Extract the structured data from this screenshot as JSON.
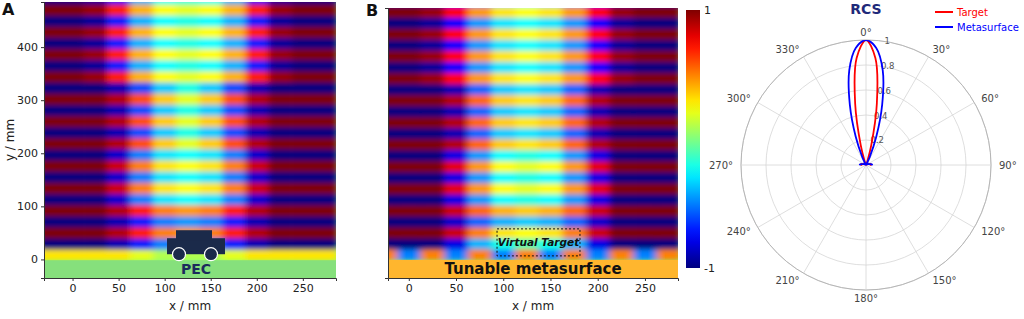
{
  "chart_data": [
    {
      "type": "heatmap",
      "title": "A",
      "xlabel": "x / mm",
      "ylabel": "y / mm",
      "xlim": [
        -31,
        286
      ],
      "ylim": [
        -35,
        485
      ],
      "xticks": [
        0,
        50,
        100,
        150,
        200,
        250
      ],
      "yticks": [
        0,
        100,
        200,
        300,
        400
      ],
      "color_range": [
        -1,
        1
      ],
      "annotations": [
        "PEC"
      ],
      "x": [
        -25,
        0,
        25,
        50,
        75,
        100,
        125,
        150,
        175,
        200,
        225,
        250,
        275
      ],
      "y": [
        9,
        30,
        51,
        72,
        93,
        114,
        135,
        156,
        177,
        198,
        219,
        240,
        261,
        282,
        303,
        324,
        345,
        366,
        387,
        408,
        429,
        450,
        471,
        492
      ],
      "values": [
        [
          0.3,
          0.3,
          0.3,
          0.3,
          0.2,
          0.1,
          0.1,
          0.1,
          0.2,
          0.3,
          0.3,
          0.3,
          0.3
        ],
        [
          -1,
          -1,
          -1,
          -0.9,
          -0.7,
          -0.5,
          -0.45,
          -0.5,
          -0.7,
          -0.9,
          -1,
          -1,
          -1
        ],
        [
          1,
          1,
          1,
          0.9,
          0.7,
          0.5,
          0.45,
          0.5,
          0.7,
          0.9,
          1,
          1,
          1
        ],
        [
          -1,
          -1,
          -1,
          -0.9,
          -0.7,
          -0.5,
          -0.45,
          -0.5,
          -0.7,
          -0.9,
          -1,
          -1,
          -1
        ],
        [
          1,
          1,
          1,
          0.9,
          0.7,
          0.5,
          0.45,
          0.5,
          0.7,
          0.9,
          1,
          1,
          1
        ],
        [
          -1,
          -1,
          -1,
          -0.85,
          -0.5,
          -0.3,
          -0.25,
          -0.3,
          -0.5,
          -0.85,
          -1,
          -1,
          -1
        ],
        [
          1,
          1,
          1,
          0.85,
          0.5,
          0.3,
          0.25,
          0.3,
          0.5,
          0.85,
          1,
          1,
          1
        ],
        [
          -1,
          -1,
          -1,
          -0.85,
          -0.5,
          -0.3,
          -0.25,
          -0.3,
          -0.5,
          -0.85,
          -1,
          -1,
          -1
        ],
        [
          1,
          1,
          1,
          0.85,
          0.5,
          0.3,
          0.25,
          0.3,
          0.5,
          0.85,
          1,
          1,
          1
        ],
        [
          -1,
          -1,
          -1,
          -0.85,
          -0.5,
          -0.3,
          -0.25,
          -0.3,
          -0.5,
          -0.85,
          -1,
          -1,
          -1
        ],
        [
          1,
          1,
          1,
          0.9,
          0.6,
          0.35,
          0.2,
          0.35,
          0.6,
          0.9,
          1,
          1,
          1
        ],
        [
          -1,
          -1,
          -1,
          -0.9,
          -0.6,
          -0.35,
          -0.2,
          -0.35,
          -0.6,
          -0.9,
          -1,
          -1,
          -1
        ],
        [
          1,
          1,
          1,
          0.9,
          0.6,
          0.35,
          0.2,
          0.35,
          0.6,
          0.9,
          1,
          1,
          1
        ],
        [
          -1,
          -1,
          -1,
          -0.9,
          -0.6,
          -0.35,
          -0.2,
          -0.35,
          -0.6,
          -0.9,
          -1,
          -1,
          -1
        ],
        [
          1,
          1,
          1,
          0.9,
          0.6,
          0.35,
          0.2,
          0.35,
          0.6,
          0.9,
          1,
          1,
          1
        ],
        [
          -1,
          -1,
          -1,
          -0.9,
          -0.6,
          -0.35,
          -0.2,
          -0.35,
          -0.6,
          -0.9,
          -1,
          -1,
          -1
        ],
        [
          1,
          1,
          0.95,
          0.7,
          0.4,
          0.25,
          0.2,
          0.25,
          0.4,
          0.7,
          0.95,
          1,
          1
        ],
        [
          -1,
          -1,
          -0.95,
          -0.7,
          -0.4,
          -0.25,
          -0.2,
          -0.25,
          -0.4,
          -0.7,
          -0.95,
          -1,
          -1
        ],
        [
          1,
          1,
          0.95,
          0.7,
          0.4,
          0.25,
          0.2,
          0.25,
          0.4,
          0.7,
          0.95,
          1,
          1
        ],
        [
          -1,
          -1,
          -0.95,
          -0.7,
          -0.4,
          -0.25,
          -0.2,
          -0.25,
          -0.4,
          -0.7,
          -0.95,
          -1,
          -1
        ],
        [
          1,
          1,
          0.95,
          0.7,
          0.4,
          0.25,
          0.2,
          0.25,
          0.4,
          0.7,
          0.95,
          1,
          1
        ],
        [
          -1,
          -1,
          -0.95,
          -0.7,
          -0.4,
          -0.25,
          -0.2,
          -0.25,
          -0.4,
          -0.7,
          -0.95,
          -1,
          -1
        ],
        [
          1,
          1,
          0.95,
          0.7,
          0.4,
          0.25,
          0.2,
          0.25,
          0.4,
          0.7,
          0.95,
          1,
          1
        ],
        [
          -1,
          -1,
          -0.95,
          -0.7,
          -0.4,
          -0.25,
          -0.2,
          -0.25,
          -0.4,
          -0.7,
          -0.95,
          -1,
          -1
        ]
      ]
    },
    {
      "type": "heatmap",
      "title": "B",
      "xlabel": "x / mm",
      "xlim": [
        -22,
        285
      ],
      "ylim": [
        -36,
        478
      ],
      "xticks": [
        0,
        50,
        100,
        150,
        200,
        250
      ],
      "tick_labels": "x",
      "color_range": [
        -1,
        1
      ],
      "color_ticks": [
        -1,
        1
      ],
      "annotations": [
        "Virtual Target",
        "Tunable metasurface"
      ],
      "x": [
        -25,
        0,
        25,
        50,
        75,
        100,
        125,
        150,
        175,
        200,
        225,
        250,
        275
      ],
      "y": [
        9,
        30,
        51,
        72,
        93,
        114,
        135,
        156,
        177,
        198,
        219,
        240,
        261,
        282,
        303,
        324,
        345,
        366,
        387,
        408,
        429,
        450,
        471,
        492
      ],
      "values": [
        [
          0.5,
          -0.5,
          0.5,
          -0.5,
          0.5,
          -0.5,
          0.5,
          -0.5,
          0.5,
          -0.5,
          0.5,
          -0.5,
          0.5
        ],
        [
          -1,
          -1,
          -1,
          -0.8,
          -0.4,
          -0.2,
          -0.1,
          -0.2,
          -0.4,
          -0.8,
          -1,
          -1,
          -1
        ],
        [
          1,
          1,
          1,
          0.85,
          0.5,
          0.3,
          0.25,
          0.3,
          0.5,
          0.85,
          1,
          1,
          1
        ],
        [
          -1,
          -1,
          -1,
          -0.85,
          -0.55,
          -0.4,
          -0.35,
          -0.4,
          -0.55,
          -0.85,
          -1,
          -1,
          -1
        ],
        [
          1,
          1,
          1,
          0.85,
          0.55,
          0.4,
          0.35,
          0.4,
          0.55,
          0.85,
          1,
          1,
          1
        ],
        [
          -1,
          -1,
          -1,
          -0.8,
          -0.45,
          -0.25,
          -0.2,
          -0.25,
          -0.45,
          -0.8,
          -1,
          -1,
          -1
        ],
        [
          1,
          1,
          1,
          0.8,
          0.45,
          0.25,
          0.2,
          0.25,
          0.45,
          0.8,
          1,
          1,
          1
        ],
        [
          -1,
          -1,
          -1,
          -0.8,
          -0.45,
          -0.25,
          -0.2,
          -0.25,
          -0.45,
          -0.8,
          -1,
          -1,
          -1
        ],
        [
          1,
          1,
          1,
          0.8,
          0.45,
          0.25,
          0.2,
          0.25,
          0.45,
          0.8,
          1,
          1,
          1
        ],
        [
          -1,
          -1,
          -1,
          -0.8,
          -0.45,
          -0.25,
          -0.2,
          -0.25,
          -0.45,
          -0.8,
          -1,
          -1,
          -1
        ],
        [
          1,
          1,
          1,
          0.9,
          0.55,
          0.35,
          0.3,
          0.35,
          0.55,
          0.9,
          1,
          1,
          1
        ],
        [
          -1,
          -1,
          -1,
          -0.9,
          -0.55,
          -0.35,
          -0.3,
          -0.35,
          -0.55,
          -0.9,
          -1,
          -1,
          -1
        ],
        [
          1,
          1,
          1,
          0.9,
          0.55,
          0.35,
          0.3,
          0.35,
          0.55,
          0.9,
          1,
          1,
          1
        ],
        [
          -1,
          -1,
          -1,
          -0.9,
          -0.55,
          -0.35,
          -0.3,
          -0.35,
          -0.55,
          -0.9,
          -1,
          -1,
          -1
        ],
        [
          1,
          1,
          1,
          0.9,
          0.55,
          0.35,
          0.3,
          0.35,
          0.55,
          0.9,
          1,
          1,
          1
        ],
        [
          -1,
          -1,
          -1,
          -0.9,
          -0.55,
          -0.35,
          -0.3,
          -0.35,
          -0.55,
          -0.9,
          -1,
          -1,
          -1
        ],
        [
          1,
          1,
          0.95,
          0.75,
          0.45,
          0.3,
          0.25,
          0.3,
          0.45,
          0.75,
          0.95,
          1,
          1
        ],
        [
          -1,
          -1,
          -0.95,
          -0.75,
          -0.45,
          -0.3,
          -0.25,
          -0.3,
          -0.45,
          -0.75,
          -0.95,
          -1,
          -1
        ],
        [
          1,
          1,
          0.95,
          0.75,
          0.45,
          0.3,
          0.25,
          0.3,
          0.45,
          0.75,
          0.95,
          1,
          1
        ],
        [
          -1,
          -1,
          -0.95,
          -0.75,
          -0.45,
          -0.3,
          -0.25,
          -0.3,
          -0.45,
          -0.75,
          -0.95,
          -1,
          -1
        ],
        [
          1,
          1,
          0.95,
          0.75,
          0.45,
          0.3,
          0.25,
          0.3,
          0.45,
          0.75,
          0.95,
          1,
          1
        ],
        [
          -1,
          -1,
          -0.95,
          -0.75,
          -0.45,
          -0.3,
          -0.25,
          -0.3,
          -0.45,
          -0.75,
          -0.95,
          -1,
          -1
        ],
        [
          1,
          1,
          0.95,
          0.75,
          0.45,
          0.3,
          0.25,
          0.3,
          0.45,
          0.75,
          0.95,
          1,
          1
        ],
        [
          -1,
          -1,
          -0.95,
          -0.75,
          -0.45,
          -0.3,
          -0.25,
          -0.3,
          -0.45,
          -0.75,
          -0.95,
          -1,
          -1
        ]
      ]
    },
    {
      "type": "polar",
      "title": "RCS",
      "legend": "upper right",
      "xlim": [
        0,
        360
      ],
      "ylim": [
        0,
        1
      ],
      "xticks": [
        {
          "value": 0,
          "label": "0°"
        },
        {
          "value": 30,
          "label": "30°"
        },
        {
          "value": 60,
          "label": "60°"
        },
        {
          "value": 90,
          "label": "90°"
        },
        {
          "value": 120,
          "label": "120°"
        },
        {
          "value": 150,
          "label": "150°"
        },
        {
          "value": 180,
          "label": "180°"
        },
        {
          "value": 210,
          "label": "210°"
        },
        {
          "value": 240,
          "label": "240°"
        },
        {
          "value": 270,
          "label": "270°"
        },
        {
          "value": 300,
          "label": "300°"
        },
        {
          "value": 330,
          "label": "330°"
        }
      ],
      "yticks": [
        0.2,
        0.4,
        0.6,
        0.8,
        1
      ],
      "x": [
        270,
        275,
        280,
        285,
        290,
        295,
        300,
        305,
        310,
        315,
        320,
        325,
        330,
        335,
        340,
        345,
        350,
        355,
        0,
        5,
        10,
        15,
        20,
        25,
        30,
        35,
        40,
        45,
        50,
        55,
        60,
        65,
        70,
        75,
        80,
        85,
        90
      ],
      "series": [
        {
          "name": "Target",
          "color": "#ff0000",
          "values": [
            0.03,
            0.04,
            0.04,
            0.03,
            0.02,
            0.015,
            0.01,
            0.01,
            0.005,
            0.005,
            0.01,
            0.02,
            0.02,
            0.01,
            0.03,
            0.16,
            0.5,
            0.86,
            1.0,
            0.86,
            0.5,
            0.16,
            0.03,
            0.01,
            0.02,
            0.02,
            0.01,
            0.005,
            0.005,
            0.01,
            0.01,
            0.015,
            0.02,
            0.03,
            0.04,
            0.04,
            0.03
          ]
        },
        {
          "name": "Metasurface",
          "color": "#0000ff",
          "values": [
            0.04,
            0.05,
            0.04,
            0.03,
            0.02,
            0.02,
            0.015,
            0.01,
            0.005,
            0.01,
            0.02,
            0.02,
            0.01,
            0.07,
            0.24,
            0.5,
            0.77,
            0.94,
            1.0,
            0.94,
            0.77,
            0.5,
            0.24,
            0.07,
            0.01,
            0.02,
            0.02,
            0.01,
            0.005,
            0.01,
            0.015,
            0.02,
            0.02,
            0.03,
            0.04,
            0.05,
            0.04
          ]
        }
      ]
    }
  ]
}
